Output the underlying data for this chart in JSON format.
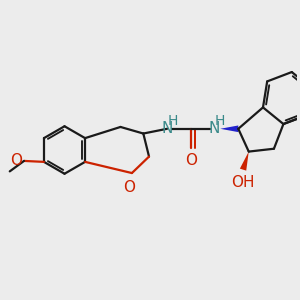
{
  "bg_color": "#ececec",
  "bond_color": "#1a1a1a",
  "N_color": "#3a8a8a",
  "O_color": "#cc2200",
  "wedge_N_color": "#2222cc",
  "wedge_O_color": "#cc2200",
  "line_width": 1.6,
  "font_size": 11,
  "xlim": [
    -3.0,
    3.2
  ],
  "ylim": [
    -1.8,
    2.0
  ]
}
